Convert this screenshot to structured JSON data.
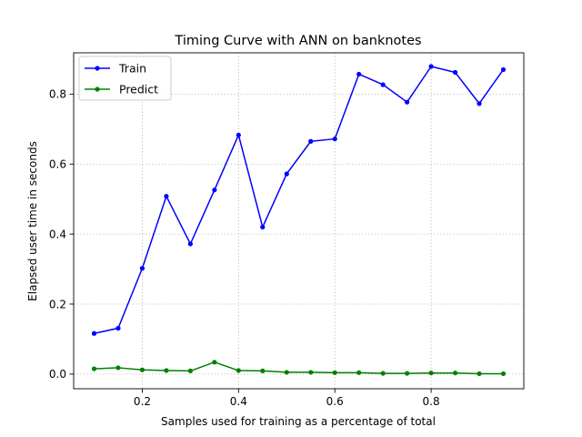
{
  "chart_data": {
    "type": "line",
    "title": "Timing Curve with ANN on banknotes",
    "xlabel": "Samples used for training as a percentage of total",
    "ylabel": "Elapsed user time in seconds",
    "xlim": [
      0.0575,
      0.9925
    ],
    "ylim": [
      -0.042,
      0.918
    ],
    "xticks": [
      0.2,
      0.4,
      0.6,
      0.8
    ],
    "xtick_labels": [
      "0.2",
      "0.4",
      "0.6",
      "0.8"
    ],
    "yticks": [
      0.0,
      0.2,
      0.4,
      0.6,
      0.8
    ],
    "ytick_labels": [
      "0.0",
      "0.2",
      "0.4",
      "0.6",
      "0.8"
    ],
    "grid": true,
    "legend_position": "upper-left",
    "x": [
      0.1,
      0.15,
      0.2,
      0.25,
      0.3,
      0.35,
      0.4,
      0.45,
      0.5,
      0.55,
      0.6,
      0.65,
      0.7,
      0.75,
      0.8,
      0.85,
      0.9,
      0.95
    ],
    "series": [
      {
        "name": "Train",
        "color": "#0000ff",
        "values": [
          0.116,
          0.131,
          0.302,
          0.508,
          0.372,
          0.526,
          0.683,
          0.42,
          0.572,
          0.665,
          0.672,
          0.857,
          0.827,
          0.777,
          0.879,
          0.862,
          0.773,
          0.87
        ]
      },
      {
        "name": "Predict",
        "color": "#008000",
        "values": [
          0.015,
          0.018,
          0.012,
          0.01,
          0.009,
          0.034,
          0.01,
          0.009,
          0.005,
          0.005,
          0.004,
          0.004,
          0.002,
          0.002,
          0.003,
          0.003,
          0.001,
          0.001
        ]
      }
    ]
  }
}
